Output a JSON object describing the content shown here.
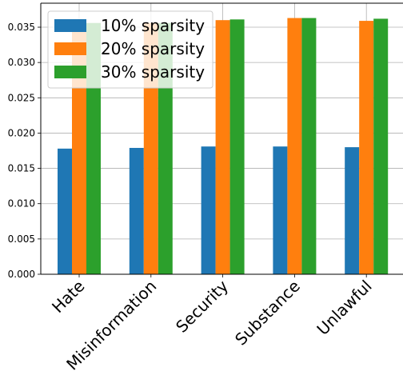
{
  "chart_data": {
    "type": "bar",
    "categories": [
      "Hate",
      "Misinformation",
      "Security",
      "Substance",
      "Unlawful"
    ],
    "series": [
      {
        "name": "10% sparsity",
        "color": "#1f77b4",
        "values": [
          0.0178,
          0.0179,
          0.0181,
          0.0181,
          0.018
        ]
      },
      {
        "name": "20% sparsity",
        "color": "#ff7f0e",
        "values": [
          0.0356,
          0.0356,
          0.036,
          0.0363,
          0.0359
        ]
      },
      {
        "name": "30% sparsity",
        "color": "#2ca02c",
        "values": [
          0.0356,
          0.0356,
          0.0361,
          0.0363,
          0.0362
        ]
      }
    ],
    "y_ticks": [
      "0.000",
      "0.005",
      "0.010",
      "0.015",
      "0.020",
      "0.025",
      "0.030",
      "0.035"
    ],
    "ylim": [
      0,
      0.0384
    ],
    "grid": true,
    "legend_position": "top-left",
    "title": "",
    "xlabel": "",
    "ylabel": ""
  }
}
